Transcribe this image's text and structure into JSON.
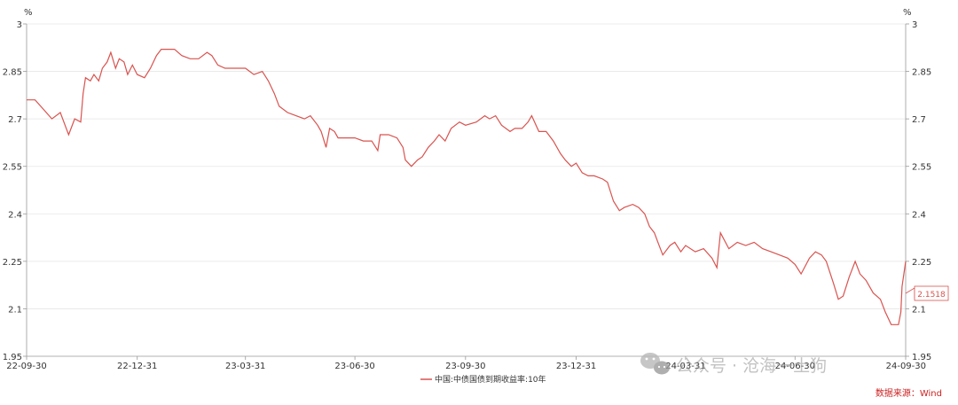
{
  "chart_data": {
    "type": "line",
    "unit_left": "%",
    "unit_right": "%",
    "ylim": [
      1.95,
      3.0
    ],
    "y_ticks": [
      {
        "value": 3.0,
        "label": "3"
      },
      {
        "value": 2.85,
        "label": "2.85"
      },
      {
        "value": 2.7,
        "label": "2.7"
      },
      {
        "value": 2.55,
        "label": "2.55"
      },
      {
        "value": 2.4,
        "label": "2.4"
      },
      {
        "value": 2.25,
        "label": "2.25"
      },
      {
        "value": 2.1,
        "label": "2.1"
      },
      {
        "value": 1.95,
        "label": "1.95"
      }
    ],
    "x_ticks": [
      {
        "date": "2022-09-30",
        "label": "22-09-30"
      },
      {
        "date": "2022-12-31",
        "label": "22-12-31"
      },
      {
        "date": "2023-03-31",
        "label": "23-03-31"
      },
      {
        "date": "2023-06-30",
        "label": "23-06-30"
      },
      {
        "date": "2023-09-30",
        "label": "23-09-30"
      },
      {
        "date": "2023-12-31",
        "label": "23-12-31"
      },
      {
        "date": "2024-03-31",
        "label": "24-03-31"
      },
      {
        "date": "2024-06-30",
        "label": "24-06-30"
      },
      {
        "date": "2024-09-30",
        "label": "24-09-30"
      }
    ],
    "grid": true,
    "legend_position": "bottom-center",
    "series": [
      {
        "name": "中国:中债国债到期收益率:10年",
        "color": "#d9534f",
        "points": [
          [
            "2022-09-30",
            2.76
          ],
          [
            "2022-10-07",
            2.76
          ],
          [
            "2022-10-14",
            2.73
          ],
          [
            "2022-10-21",
            2.7
          ],
          [
            "2022-10-28",
            2.72
          ],
          [
            "2022-11-02",
            2.67
          ],
          [
            "2022-11-04",
            2.65
          ],
          [
            "2022-11-09",
            2.7
          ],
          [
            "2022-11-14",
            2.69
          ],
          [
            "2022-11-16",
            2.78
          ],
          [
            "2022-11-18",
            2.83
          ],
          [
            "2022-11-22",
            2.82
          ],
          [
            "2022-11-25",
            2.84
          ],
          [
            "2022-11-29",
            2.82
          ],
          [
            "2022-12-02",
            2.86
          ],
          [
            "2022-12-06",
            2.88
          ],
          [
            "2022-12-09",
            2.91
          ],
          [
            "2022-12-13",
            2.86
          ],
          [
            "2022-12-16",
            2.89
          ],
          [
            "2022-12-20",
            2.88
          ],
          [
            "2022-12-23",
            2.84
          ],
          [
            "2022-12-27",
            2.87
          ],
          [
            "2022-12-31",
            2.84
          ],
          [
            "2023-01-06",
            2.83
          ],
          [
            "2023-01-11",
            2.86
          ],
          [
            "2023-01-16",
            2.9
          ],
          [
            "2023-01-20",
            2.92
          ],
          [
            "2023-01-31",
            2.92
          ],
          [
            "2023-02-06",
            2.9
          ],
          [
            "2023-02-13",
            2.89
          ],
          [
            "2023-02-20",
            2.89
          ],
          [
            "2023-02-27",
            2.91
          ],
          [
            "2023-03-03",
            2.9
          ],
          [
            "2023-03-08",
            2.87
          ],
          [
            "2023-03-14",
            2.86
          ],
          [
            "2023-03-20",
            2.86
          ],
          [
            "2023-03-31",
            2.86
          ],
          [
            "2023-04-07",
            2.84
          ],
          [
            "2023-04-14",
            2.85
          ],
          [
            "2023-04-19",
            2.82
          ],
          [
            "2023-04-24",
            2.78
          ],
          [
            "2023-04-28",
            2.74
          ],
          [
            "2023-05-05",
            2.72
          ],
          [
            "2023-05-12",
            2.71
          ],
          [
            "2023-05-19",
            2.7
          ],
          [
            "2023-05-24",
            2.71
          ],
          [
            "2023-05-30",
            2.68
          ],
          [
            "2023-06-02",
            2.66
          ],
          [
            "2023-06-06",
            2.61
          ],
          [
            "2023-06-09",
            2.67
          ],
          [
            "2023-06-13",
            2.66
          ],
          [
            "2023-06-16",
            2.64
          ],
          [
            "2023-06-23",
            2.64
          ],
          [
            "2023-06-30",
            2.64
          ],
          [
            "2023-07-07",
            2.63
          ],
          [
            "2023-07-14",
            2.63
          ],
          [
            "2023-07-19",
            2.6
          ],
          [
            "2023-07-21",
            2.65
          ],
          [
            "2023-07-28",
            2.65
          ],
          [
            "2023-08-04",
            2.64
          ],
          [
            "2023-08-09",
            2.61
          ],
          [
            "2023-08-11",
            2.57
          ],
          [
            "2023-08-16",
            2.55
          ],
          [
            "2023-08-21",
            2.57
          ],
          [
            "2023-08-25",
            2.58
          ],
          [
            "2023-08-30",
            2.61
          ],
          [
            "2023-09-04",
            2.63
          ],
          [
            "2023-09-08",
            2.65
          ],
          [
            "2023-09-13",
            2.63
          ],
          [
            "2023-09-18",
            2.67
          ],
          [
            "2023-09-25",
            2.69
          ],
          [
            "2023-09-30",
            2.68
          ],
          [
            "2023-10-09",
            2.69
          ],
          [
            "2023-10-16",
            2.71
          ],
          [
            "2023-10-20",
            2.7
          ],
          [
            "2023-10-25",
            2.71
          ],
          [
            "2023-10-30",
            2.68
          ],
          [
            "2023-11-06",
            2.66
          ],
          [
            "2023-11-10",
            2.67
          ],
          [
            "2023-11-16",
            2.67
          ],
          [
            "2023-11-21",
            2.69
          ],
          [
            "2023-11-24",
            2.71
          ],
          [
            "2023-11-30",
            2.66
          ],
          [
            "2023-12-06",
            2.66
          ],
          [
            "2023-12-12",
            2.63
          ],
          [
            "2023-12-18",
            2.59
          ],
          [
            "2023-12-22",
            2.57
          ],
          [
            "2023-12-27",
            2.55
          ],
          [
            "2023-12-31",
            2.56
          ],
          [
            "2024-01-05",
            2.53
          ],
          [
            "2024-01-10",
            2.52
          ],
          [
            "2024-01-15",
            2.52
          ],
          [
            "2024-01-22",
            2.51
          ],
          [
            "2024-01-26",
            2.5
          ],
          [
            "2024-01-31",
            2.44
          ],
          [
            "2024-02-05",
            2.41
          ],
          [
            "2024-02-09",
            2.42
          ],
          [
            "2024-02-16",
            2.43
          ],
          [
            "2024-02-21",
            2.42
          ],
          [
            "2024-02-26",
            2.4
          ],
          [
            "2024-03-01",
            2.36
          ],
          [
            "2024-03-05",
            2.34
          ],
          [
            "2024-03-08",
            2.31
          ],
          [
            "2024-03-12",
            2.27
          ],
          [
            "2024-03-18",
            2.3
          ],
          [
            "2024-03-22",
            2.31
          ],
          [
            "2024-03-27",
            2.28
          ],
          [
            "2024-03-31",
            2.3
          ],
          [
            "2024-04-08",
            2.28
          ],
          [
            "2024-04-15",
            2.29
          ],
          [
            "2024-04-22",
            2.26
          ],
          [
            "2024-04-26",
            2.23
          ],
          [
            "2024-04-29",
            2.34
          ],
          [
            "2024-05-06",
            2.29
          ],
          [
            "2024-05-13",
            2.31
          ],
          [
            "2024-05-20",
            2.3
          ],
          [
            "2024-05-27",
            2.31
          ],
          [
            "2024-06-03",
            2.29
          ],
          [
            "2024-06-10",
            2.28
          ],
          [
            "2024-06-17",
            2.27
          ],
          [
            "2024-06-24",
            2.26
          ],
          [
            "2024-06-30",
            2.24
          ],
          [
            "2024-07-05",
            2.21
          ],
          [
            "2024-07-12",
            2.26
          ],
          [
            "2024-07-17",
            2.28
          ],
          [
            "2024-07-22",
            2.27
          ],
          [
            "2024-07-26",
            2.25
          ],
          [
            "2024-08-01",
            2.18
          ],
          [
            "2024-08-05",
            2.13
          ],
          [
            "2024-08-09",
            2.14
          ],
          [
            "2024-08-14",
            2.2
          ],
          [
            "2024-08-19",
            2.25
          ],
          [
            "2024-08-23",
            2.21
          ],
          [
            "2024-08-28",
            2.19
          ],
          [
            "2024-09-03",
            2.15
          ],
          [
            "2024-09-09",
            2.13
          ],
          [
            "2024-09-13",
            2.09
          ],
          [
            "2024-09-18",
            2.05
          ],
          [
            "2024-09-24",
            2.05
          ],
          [
            "2024-09-26",
            2.09
          ],
          [
            "2024-09-27",
            2.17
          ],
          [
            "2024-09-30",
            2.25
          ]
        ]
      }
    ],
    "annotations": [
      {
        "type": "value-callout",
        "text": "2.1518",
        "value": 2.1518,
        "color": "#d9534f"
      }
    ]
  },
  "legend": {
    "label": "中国:中债国债到期收益率:10年"
  },
  "source": {
    "text": "数据来源：Wind"
  },
  "watermark": {
    "text": "公众号 · 沧海一土狗",
    "small": "24-06-30"
  },
  "colors": {
    "line": "#d9534f",
    "grid": "#e6e6e6",
    "axis": "#999999",
    "source": "#cc2222"
  }
}
